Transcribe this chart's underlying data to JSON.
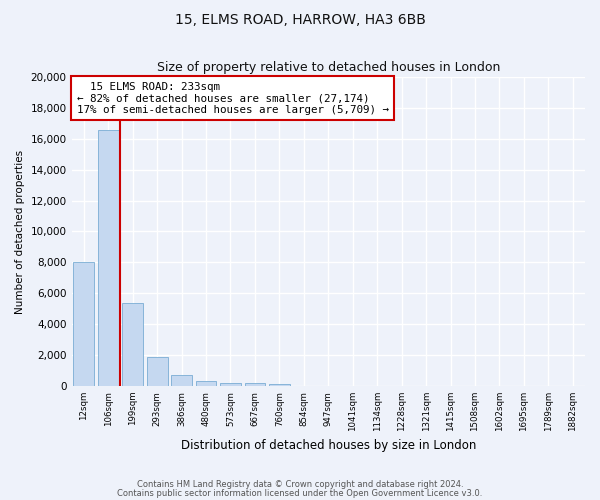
{
  "title1": "15, ELMS ROAD, HARROW, HA3 6BB",
  "title2": "Size of property relative to detached houses in London",
  "xlabel": "Distribution of detached houses by size in London",
  "ylabel": "Number of detached properties",
  "bar_values": [
    8050,
    16600,
    5350,
    1850,
    680,
    330,
    200,
    175,
    130,
    0,
    0,
    0,
    0,
    0,
    0,
    0,
    0,
    0,
    0,
    0,
    0
  ],
  "bar_labels": [
    "12sqm",
    "106sqm",
    "199sqm",
    "293sqm",
    "386sqm",
    "480sqm",
    "573sqm",
    "667sqm",
    "760sqm",
    "854sqm",
    "947sqm",
    "1041sqm",
    "1134sqm",
    "1228sqm",
    "1321sqm",
    "1415sqm",
    "1508sqm",
    "1602sqm",
    "1695sqm",
    "1789sqm",
    "1882sqm"
  ],
  "bar_color": "#c5d8f0",
  "bar_edge_color": "#7aadd4",
  "vline_color": "#cc0000",
  "annotation_text": "  15 ELMS ROAD: 233sqm\n← 82% of detached houses are smaller (27,174)\n17% of semi-detached houses are larger (5,709) →",
  "annotation_box_color": "#cc0000",
  "ylim": [
    0,
    20000
  ],
  "yticks": [
    0,
    2000,
    4000,
    6000,
    8000,
    10000,
    12000,
    14000,
    16000,
    18000,
    20000
  ],
  "footer1": "Contains HM Land Registry data © Crown copyright and database right 2024.",
  "footer2": "Contains public sector information licensed under the Open Government Licence v3.0.",
  "bg_color": "#eef2fa",
  "plot_bg_color": "#eef2fa",
  "grid_color": "#ffffff",
  "title1_fontsize": 10,
  "title2_fontsize": 9
}
